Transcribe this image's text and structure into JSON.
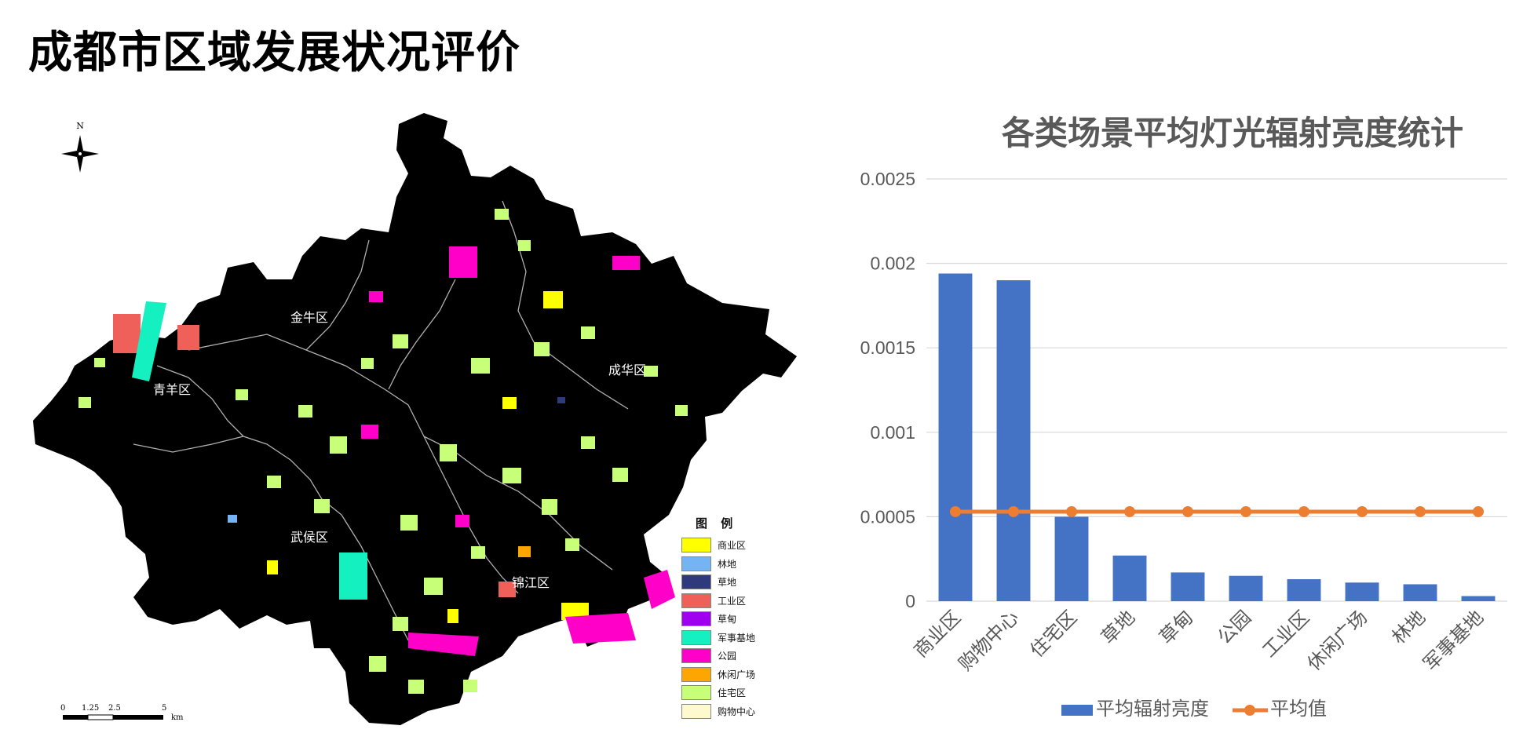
{
  "page": {
    "title": "成都市区域发展状况评价"
  },
  "map": {
    "north_label": "N",
    "districts": [
      {
        "name": "金牛区"
      },
      {
        "name": "青羊区"
      },
      {
        "name": "成华区"
      },
      {
        "name": "武侯区"
      },
      {
        "name": "锦江区"
      }
    ],
    "legend": {
      "title": "图 例",
      "items": [
        {
          "label": "商业区",
          "color": "#ffff00"
        },
        {
          "label": "林地",
          "color": "#74b4f4"
        },
        {
          "label": "草地",
          "color": "#2e3a7c"
        },
        {
          "label": "工业区",
          "color": "#f0605a"
        },
        {
          "label": "草甸",
          "color": "#a000f0"
        },
        {
          "label": "军事基地",
          "color": "#14f0c0"
        },
        {
          "label": "公园",
          "color": "#ff00c8"
        },
        {
          "label": "休闲广场",
          "color": "#ffa500"
        },
        {
          "label": "住宅区",
          "color": "#c8ff78"
        },
        {
          "label": "购物中心",
          "color": "#fffacd"
        }
      ]
    },
    "scale_bar": {
      "ticks": [
        "0",
        "1.25",
        "2.5",
        "5"
      ],
      "unit": "km"
    },
    "colors": {
      "background": "#000000",
      "boundary": "#cfcfcf"
    }
  },
  "chart_data": {
    "type": "bar",
    "title": "各类场景平均灯光辐射亮度统计",
    "categories": [
      "商业区",
      "购物中心",
      "住宅区",
      "草地",
      "草甸",
      "公园",
      "工业区",
      "休闲广场",
      "林地",
      "军事基地"
    ],
    "series": [
      {
        "name": "平均辐射亮度",
        "type": "bar",
        "color": "#4472c4",
        "values": [
          0.00194,
          0.0019,
          0.0005,
          0.00027,
          0.00017,
          0.00015,
          0.00013,
          0.00011,
          0.0001,
          3e-05
        ]
      },
      {
        "name": "平均值",
        "type": "line",
        "color": "#ed7d31",
        "values": [
          0.00053,
          0.00053,
          0.00053,
          0.00053,
          0.00053,
          0.00053,
          0.00053,
          0.00053,
          0.00053,
          0.00053
        ]
      }
    ],
    "yticks": [
      "0",
      "0.0005",
      "0.001",
      "0.0015",
      "0.002",
      "0.0025"
    ],
    "ylim": [
      0,
      0.0025
    ],
    "grid": true,
    "legend_position": "bottom"
  }
}
